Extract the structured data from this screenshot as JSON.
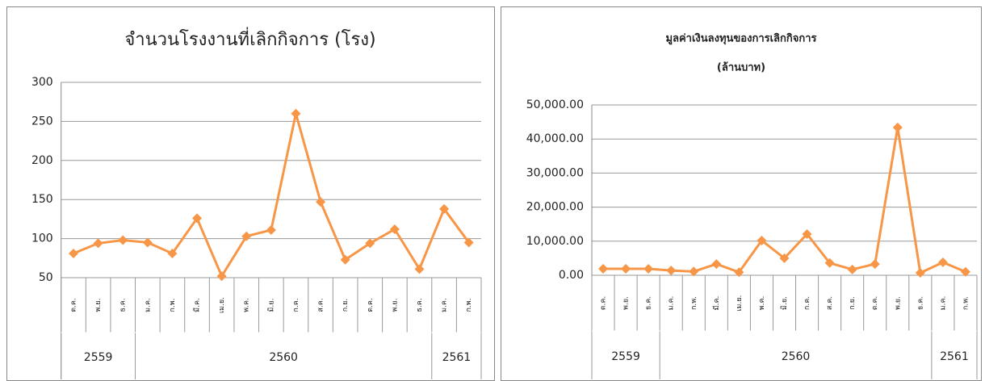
{
  "chart_data": [
    {
      "type": "line",
      "title": [
        "จำนวนโรงงานที่เลิกกิจการ (โรง)"
      ],
      "categories": [
        "ต.ค.",
        "พ.ย.",
        "ธ.ค.",
        "ม.ค.",
        "ก.พ.",
        "มี.ค.",
        "เม.ย.",
        "พ.ค.",
        "มิ.ย.",
        "ก.ค.",
        "ส.ค.",
        "ก.ย.",
        "ต.ค.",
        "พ.ย.",
        "ธ.ค.",
        "ม.ค.",
        "ก.พ."
      ],
      "groups": [
        "2559",
        null,
        null,
        "2560",
        null,
        null,
        null,
        null,
        null,
        null,
        null,
        null,
        null,
        null,
        null,
        "2561",
        null
      ],
      "series": [
        {
          "color": "#f79646",
          "values": [
            81,
            94,
            98,
            95,
            81,
            126,
            52,
            103,
            111,
            260,
            147,
            73,
            94,
            112,
            61,
            138,
            95
          ]
        }
      ],
      "ylim": [
        50,
        300
      ],
      "yticks": [
        50,
        100,
        150,
        200,
        250,
        300
      ],
      "grid": true
    },
    {
      "type": "line",
      "title": [
        "มูลค่าเงินลงทุนของการเลิกกิจการ",
        "(ล้านบาท)"
      ],
      "categories": [
        "ต.ค.",
        "พ.ย.",
        "ธ.ค.",
        "ม.ค.",
        "ก.พ.",
        "มี.ค.",
        "เม.ย.",
        "พ.ค.",
        "มิ.ย.",
        "ก.ค.",
        "ส.ค.",
        "ก.ย.",
        "ต.ค.",
        "พ.ย.",
        "ธ.ค.",
        "ม.ค.",
        "ก.พ."
      ],
      "groups": [
        "2559",
        null,
        null,
        "2560",
        null,
        null,
        null,
        null,
        null,
        null,
        null,
        null,
        null,
        null,
        null,
        "2561",
        null
      ],
      "series": [
        {
          "color": "#f79646",
          "values": [
            1900,
            1900,
            1900,
            1400,
            1100,
            3300,
            900,
            10200,
            5000,
            12100,
            3600,
            1700,
            3300,
            43400,
            700,
            3800,
            1000
          ]
        }
      ],
      "ylim": [
        0,
        50000
      ],
      "yticks": [
        {
          "value": 0,
          "label": "0.00"
        },
        {
          "value": 10000,
          "label": "10,000.00"
        },
        {
          "value": 20000,
          "label": "20,000.00"
        },
        {
          "value": 30000,
          "label": "30,000.00"
        },
        {
          "value": 40000,
          "label": "40,000.00"
        },
        {
          "value": 50000,
          "label": "50,000.00"
        }
      ],
      "grid": true
    }
  ]
}
